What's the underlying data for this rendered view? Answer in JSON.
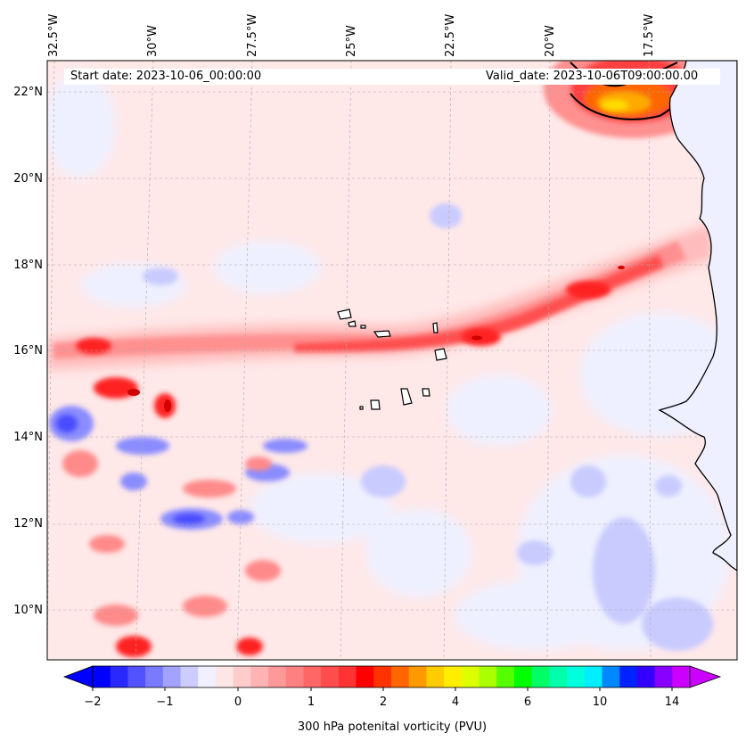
{
  "header": {
    "start_date": "Start date: 2023-10-06_00:00:00",
    "valid_date": "Valid_date: 2023-10-06T09:00:00.00"
  },
  "axes": {
    "lat_labels": [
      "22°N",
      "20°N",
      "18°N",
      "16°N",
      "14°N",
      "12°N",
      "10°N"
    ],
    "lon_labels": [
      "32.5°W",
      "30°W",
      "27.5°W",
      "25°W",
      "22.5°W",
      "20°W",
      "17.5°W"
    ]
  },
  "colorbar": {
    "label": "300 hPa potenital vorticity (PVU)",
    "ticks": [
      "−2",
      "−1",
      "0",
      "1",
      "2",
      "4",
      "6",
      "10",
      "14"
    ],
    "colors": [
      "#0000ff",
      "#2929ff",
      "#5252ff",
      "#7a7aff",
      "#a3a3ff",
      "#ccccff",
      "#f0f0ff",
      "#ffe6e6",
      "#ffcccc",
      "#ffb3b3",
      "#ff9999",
      "#ff8080",
      "#ff6666",
      "#ff4d4d",
      "#ff3333",
      "#ff0000",
      "#ff3300",
      "#ff6600",
      "#ff9900",
      "#ffcc00",
      "#ffee00",
      "#ddff00",
      "#aaff00",
      "#55ff00",
      "#00ff00",
      "#00ff66",
      "#00ffaa",
      "#00ffdd",
      "#00eeff",
      "#0088ff",
      "#0022ff",
      "#3300ff",
      "#8800ff",
      "#cc00ff"
    ]
  }
}
